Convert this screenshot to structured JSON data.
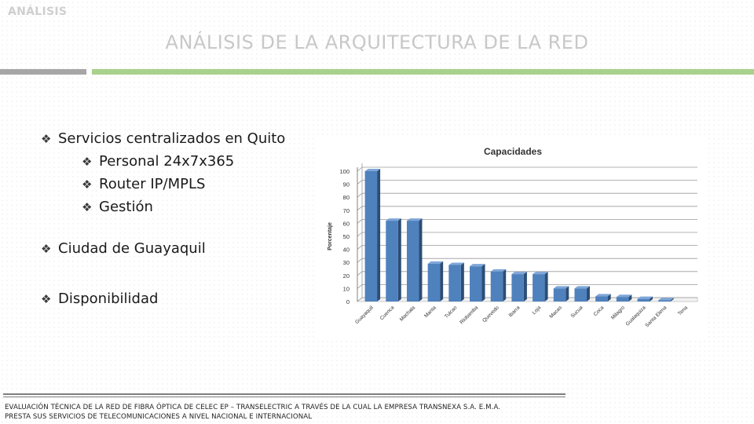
{
  "header": {
    "section": "ANÁLISIS",
    "title": "ANÁLISIS DE LA ARQUITECTURA DE LA RED"
  },
  "bullets": [
    {
      "text": "Servicios centralizados en Quito",
      "level": 1
    },
    {
      "text": "Personal 24x7x365",
      "level": 2
    },
    {
      "text": "Router IP/MPLS",
      "level": 2
    },
    {
      "text": "Gestión",
      "level": 2
    },
    {
      "text": "Ciudad de Guayaquil",
      "level": 1
    },
    {
      "text": "Disponibilidad",
      "level": 1
    }
  ],
  "bullet_glyph": "❖",
  "chart_data": {
    "type": "bar",
    "title": "Capacidades",
    "xlabel": "",
    "ylabel": "Porcentaje",
    "ylim": [
      0,
      100
    ],
    "yticks": [
      0,
      10,
      20,
      30,
      40,
      50,
      60,
      70,
      80,
      90,
      100
    ],
    "grid": true,
    "legend": "none",
    "bar_color": "#4f81bd",
    "categories": [
      "Guayaquil",
      "Cuenca",
      "Machala",
      "Manta",
      "Tulcan",
      "Riobamba",
      "Quevedo",
      "Ibarra",
      "Loja",
      "Macas",
      "Sucua",
      "Coca",
      "Milagro",
      "Gualaquiza",
      "Santa Elena",
      "Tena"
    ],
    "values": [
      100,
      62,
      62,
      29,
      28,
      27,
      23,
      21,
      21,
      10,
      10,
      4,
      3.5,
      2,
      1,
      0
    ]
  },
  "footer": {
    "line1": "EVALUACIÓN TÉCNICA DE LA RED DE FIBRA ÓPTICA DE CELEC EP – TRANSELECTRIC A TRAVÉS DE LA CUAL LA EMPRESA TRANSNEXA S.A. E.M.A.",
    "line2": "PRESTA SUS SERVICIOS DE TELECOMUNICACIONES  A NIVEL NACIONAL E INTERNACIONAL"
  }
}
